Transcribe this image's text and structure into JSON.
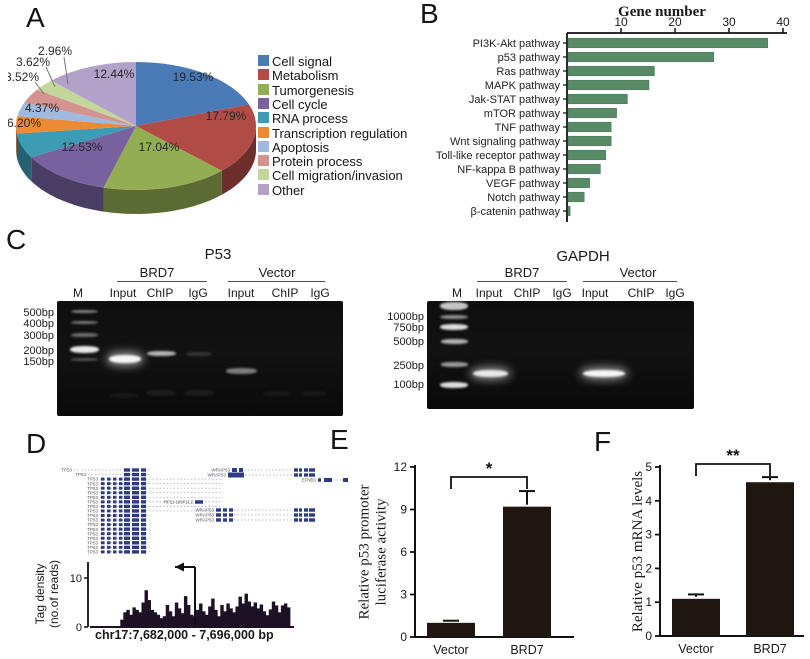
{
  "panel_labels": {
    "a": "A",
    "b": "B",
    "c": "C",
    "d": "D",
    "e": "E",
    "f": "F"
  },
  "chart_data": [
    {
      "id": "function-pie",
      "type": "pie",
      "legend_position": "right",
      "slices": [
        {
          "label": "Cell signal",
          "value": 19.53,
          "color": "#4a7bb7"
        },
        {
          "label": "Metabolism",
          "value": 17.79,
          "color": "#b04b45"
        },
        {
          "label": "Tumorgenesis",
          "value": 17.04,
          "color": "#93ad53"
        },
        {
          "label": "Cell cycle",
          "value": 12.53,
          "color": "#77629f"
        },
        {
          "label": "RNA process",
          "value": 6.2,
          "color": "#3d9cb3"
        },
        {
          "label": "Transcription regulation",
          "value": 4.37,
          "color": "#ec8b33"
        },
        {
          "label": "Apoptosis",
          "value": 3.52,
          "color": "#9fbade"
        },
        {
          "label": "Protein process",
          "value": 3.62,
          "color": "#d59390"
        },
        {
          "label": "Cell  migration/invasion",
          "value": 2.96,
          "color": "#c3d69b"
        },
        {
          "label": "Other",
          "value": 12.44,
          "color": "#b2a2c9"
        }
      ]
    },
    {
      "id": "gene-number-bar",
      "type": "bar",
      "orientation": "horizontal",
      "title": "Gene number",
      "categories": [
        "PI3K-Akt  pathway",
        "p53  pathway",
        "Ras  pathway",
        "MAPK  pathway",
        "Jak-STAT  pathway",
        "mTOR  pathway",
        "TNF  pathway",
        "Wnt signaling  pathway",
        "Toll-like receptor  pathway",
        "NF-kappa B  pathway",
        "VEGF  pathway",
        "Notch  pathway",
        "β-catenin pathway"
      ],
      "values": [
        37,
        27,
        16,
        15,
        11,
        9,
        8,
        8,
        7,
        6,
        4,
        3,
        0.4
      ],
      "xlim": [
        0,
        40
      ],
      "xticks": [
        10,
        20,
        30,
        40
      ],
      "bar_color": "#578b66",
      "grid": false
    },
    {
      "id": "tag-density",
      "type": "area",
      "ylabel_lines": [
        "Tag density",
        "(no.of reads)"
      ],
      "xlabel": "chr17:7,682,000 - 7,696,000 bp",
      "yticks": [
        0,
        10
      ],
      "ylim": [
        0,
        13
      ],
      "fill_color": "#1d1126",
      "profile": [
        0,
        0,
        0,
        0,
        0,
        0,
        0,
        0,
        0,
        0,
        1.5,
        3,
        3.5,
        2.5,
        4,
        3.5,
        3,
        5,
        7.5,
        5.5,
        3.5,
        3,
        2.5,
        1.8,
        2.2,
        4.5,
        3.2,
        2.2,
        5,
        3.8,
        2.8,
        6.3,
        4.5,
        2.5,
        2.2,
        3.5,
        4.8,
        3.2,
        2.5,
        4.2,
        5.8,
        3.5,
        2.2,
        4.5,
        3.2,
        4.8,
        3.8,
        3.0,
        4.2,
        6.2,
        4.8,
        6.8,
        5.2,
        4.2,
        5.0,
        3.8,
        4.6,
        3.2,
        2.4,
        3.6,
        5.2,
        4.4,
        3.0,
        4.4,
        4.8,
        4.0
      ]
    },
    {
      "id": "luciferase-bar",
      "type": "bar",
      "categories": [
        "Vector",
        "BRD7"
      ],
      "values": [
        1.0,
        9.2
      ],
      "errors": [
        0.15,
        1.1
      ],
      "ylabel_lines": [
        "Relative p53 promoter",
        "luciferase activity"
      ],
      "ylim": [
        0,
        12
      ],
      "yticks": [
        0,
        3,
        6,
        9,
        12
      ],
      "significance": "*",
      "bar_color": "#201611"
    },
    {
      "id": "mrna-bar",
      "type": "bar",
      "categories": [
        "Vector",
        "BRD7"
      ],
      "values": [
        1.1,
        4.55
      ],
      "errors": [
        0.13,
        0.15
      ],
      "ylabel_lines": [
        "Relative p53 mRNA levels"
      ],
      "ylim": [
        0,
        5
      ],
      "yticks": [
        0,
        1,
        2,
        3,
        4,
        5
      ],
      "significance": "**",
      "bar_color": "#201611"
    }
  ],
  "gels": [
    {
      "title": "P53",
      "groups": [
        "BRD7",
        "Vector"
      ],
      "lanes": [
        "M",
        "Input",
        "ChIP",
        "IgG",
        "Input",
        "ChIP",
        "IgG"
      ],
      "ladder": [
        "500bp",
        "400bp",
        "300bp",
        "200bp",
        "150bp"
      ]
    },
    {
      "title": "GAPDH",
      "groups": [
        "BRD7",
        "Vector"
      ],
      "lanes": [
        "M",
        "Input",
        "ChIP",
        "IgG",
        "Input",
        "ChIP",
        "IgG"
      ],
      "ladder": [
        "1000bp",
        "750bp",
        "500bp",
        "250bp",
        "100bp"
      ]
    }
  ],
  "genome_track": {
    "gene_labels": [
      "TP53",
      "WRAP53",
      "EFNB3",
      "RP11-199F11.2"
    ]
  }
}
